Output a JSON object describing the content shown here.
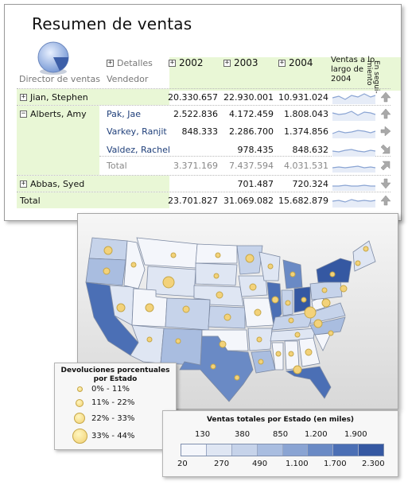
{
  "report": {
    "title": "Resumen de ventas",
    "col_director": "Director de ventas",
    "col_details": "Detalles",
    "col_seller": "Vendedor",
    "years": [
      "2002",
      "2003",
      "2004"
    ],
    "col_trend": "Ventas a lo largo de 2004",
    "col_tracking": "En segui-\nmiento",
    "rows": [
      {
        "director": "Jian, Stephen",
        "seller": "",
        "v2002": "20.330.657",
        "v2003": "22.930.001",
        "v2004": "10.931.024",
        "expand": "+"
      },
      {
        "director": "Alberts, Amy",
        "seller": "Pak, Jae",
        "v2002": "2.522.836",
        "v2003": "4.172.459",
        "v2004": "1.808.043",
        "expand": "−"
      },
      {
        "director": "",
        "seller": "Varkey, Ranjit",
        "v2002": "848.333",
        "v2003": "2.286.700",
        "v2004": "1.374.856",
        "expand": ""
      },
      {
        "director": "",
        "seller": "Valdez, Rachel",
        "v2002": "",
        "v2003": "978.435",
        "v2004": "848.632",
        "expand": ""
      },
      {
        "director": "",
        "seller": "Total",
        "v2002": "3.371.169",
        "v2003": "7.437.594",
        "v2004": "4.031.531",
        "expand": ""
      },
      {
        "director": "Abbas, Syed",
        "seller": "",
        "v2002": "",
        "v2003": "701.487",
        "v2004": "720.324",
        "expand": "+"
      }
    ],
    "total": {
      "label": "Total",
      "v2002": "23.701.827",
      "v2003": "31.069.082",
      "v2004": "15.682.879"
    },
    "tracking_icons": [
      "arrow-up-icon",
      "arrow-up-icon",
      "arrow-right-icon",
      "arrow-down-right-icon",
      "arrow-up-right-icon",
      "arrow-down-icon",
      "arrow-up-icon"
    ]
  },
  "legend_returns": {
    "title": "Devoluciones porcentuales por Estado",
    "items": [
      "0% - 11%",
      "11% - 22%",
      "22% - 33%",
      "33% - 44%"
    ]
  },
  "legend_sales": {
    "title": "Ventas totales por Estado (en miles)",
    "top_labels": [
      "130",
      "380",
      "850",
      "1.200",
      "1.900"
    ],
    "bottom_labels": [
      "20",
      "270",
      "490",
      "1.100",
      "1.700",
      "2.300"
    ],
    "colors": [
      "#f4f6fb",
      "#dfe6f3",
      "#c6d3ea",
      "#a9bde0",
      "#8aa4d3",
      "#6a8ac5",
      "#4b6fb5",
      "#3558a2"
    ]
  },
  "colors": {
    "accent_green": "#e9f7d6",
    "map_dark": "#3558a2",
    "bubble": "#f3d27a"
  }
}
